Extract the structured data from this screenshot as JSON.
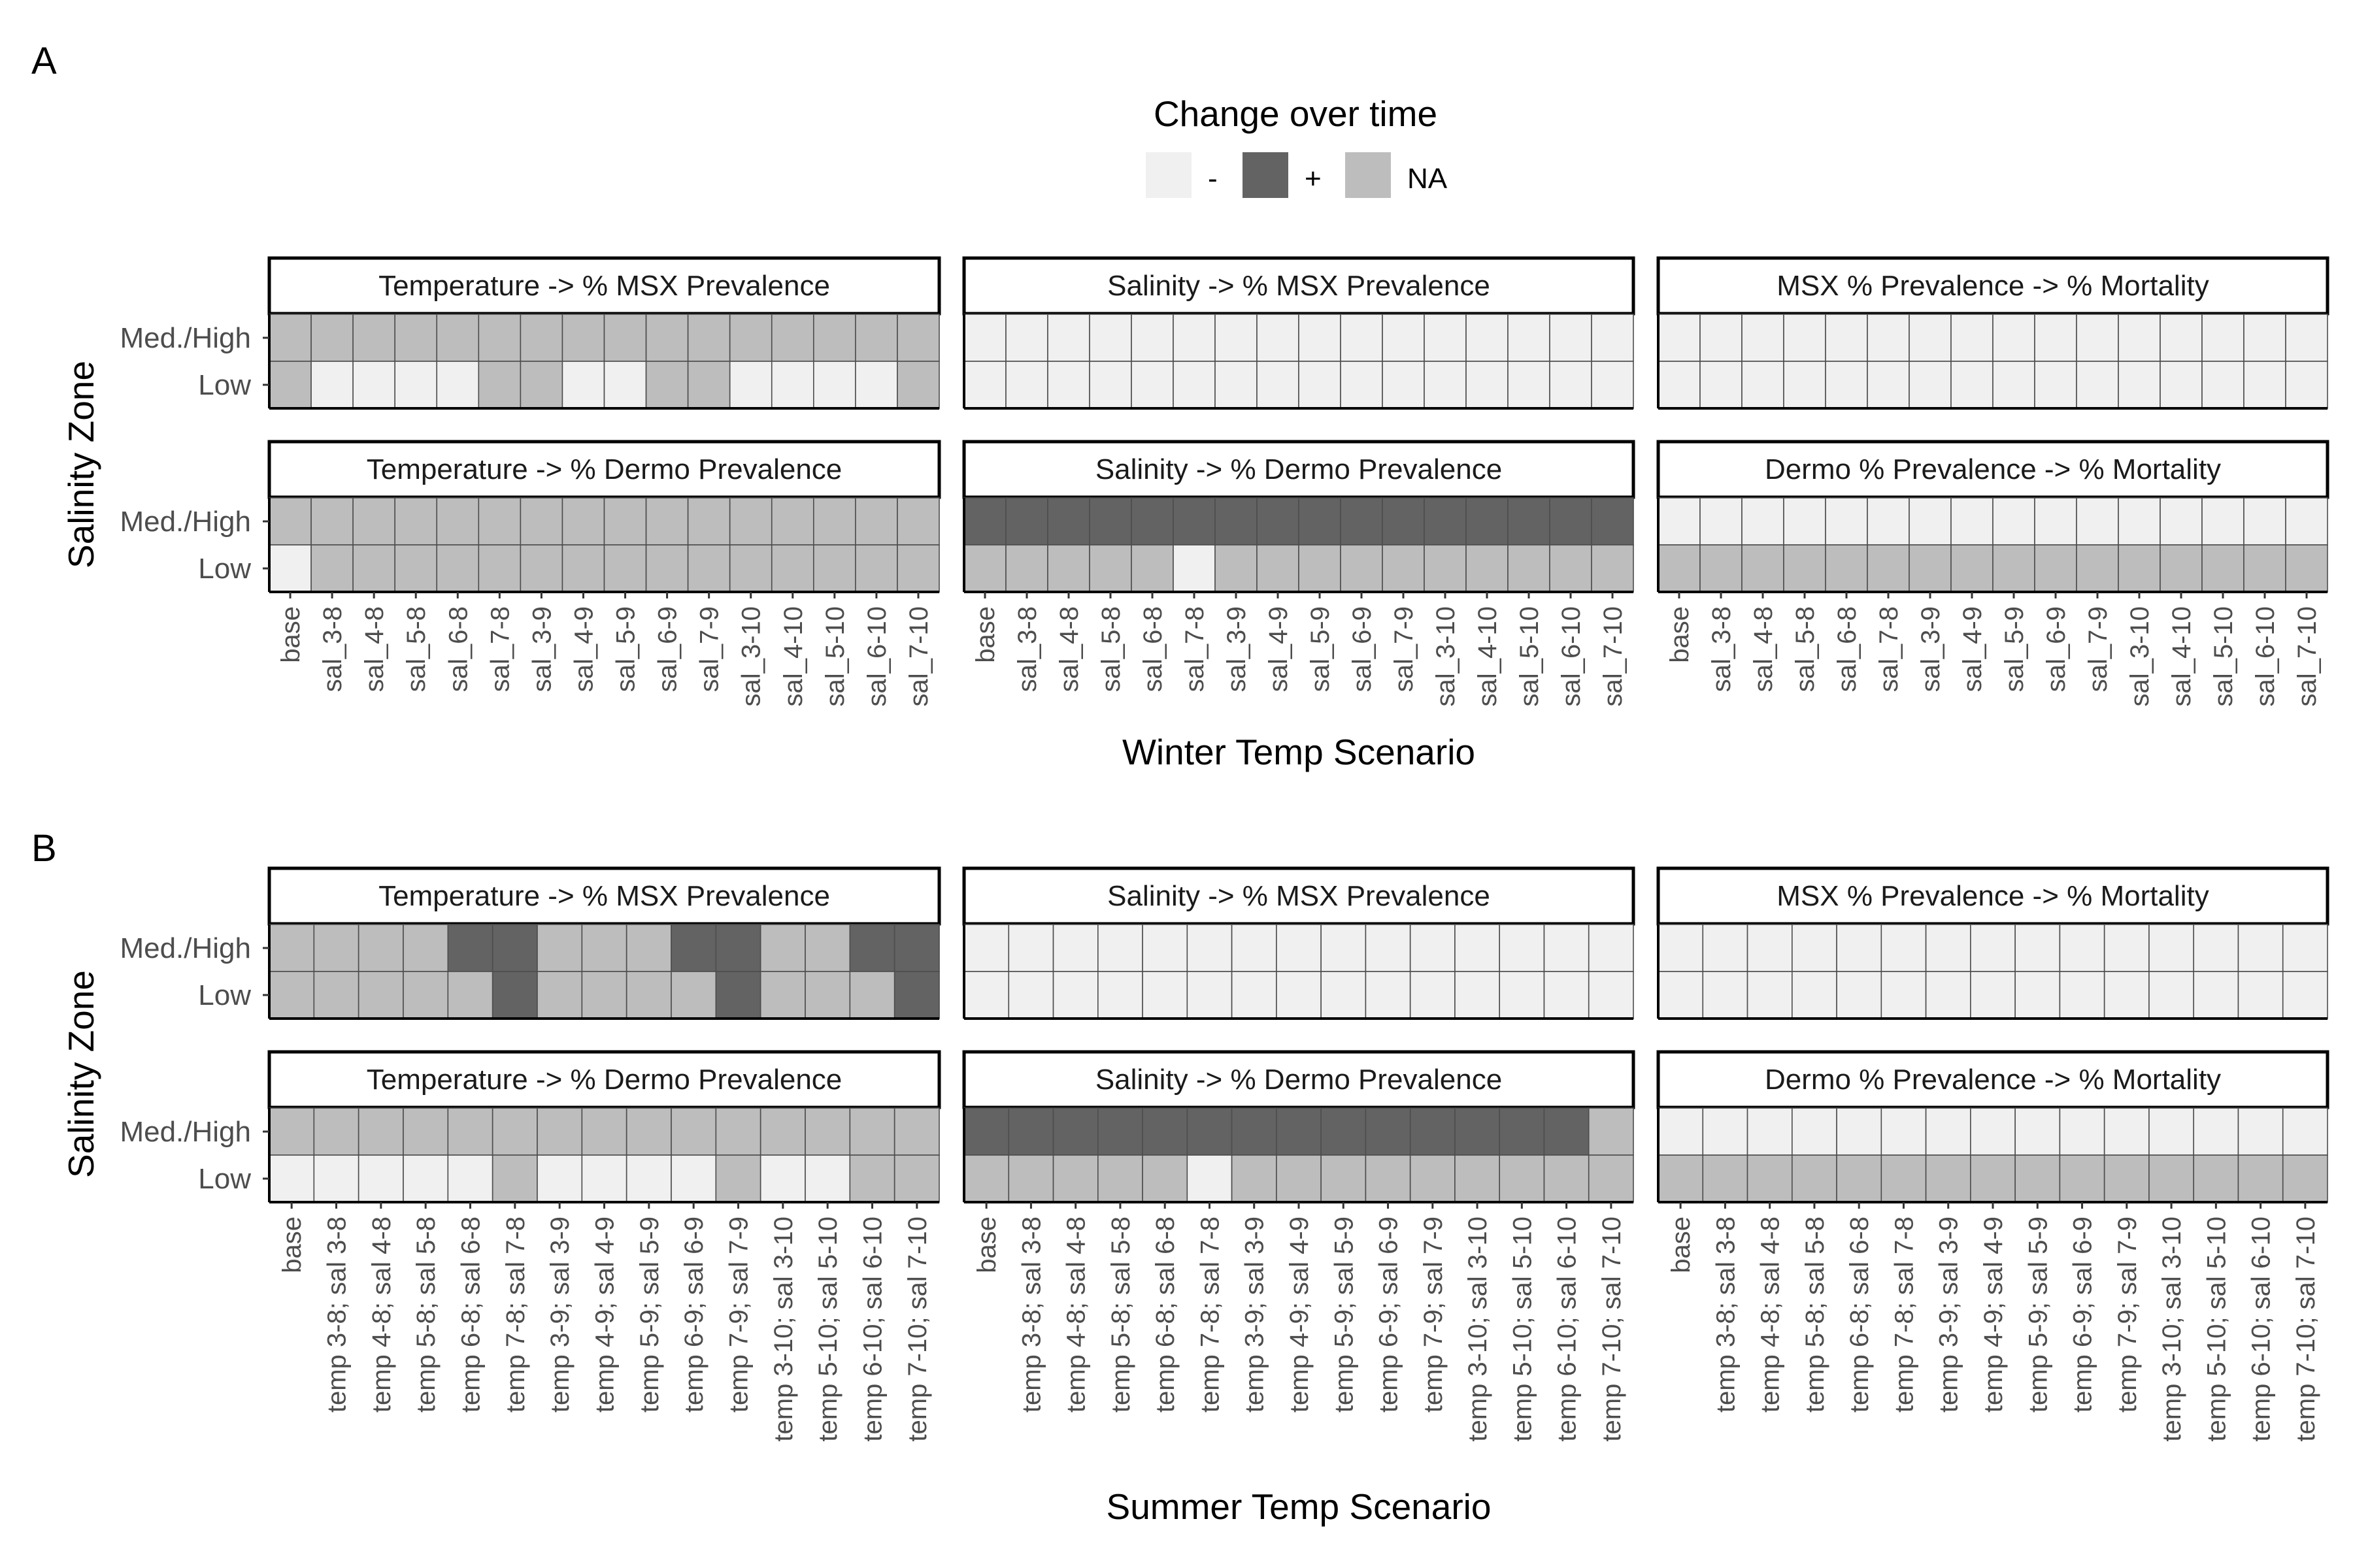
{
  "legend": {
    "title": "Change over time",
    "items": [
      {
        "key": "-",
        "label": "-",
        "color": "#F0F0F0"
      },
      {
        "key": "+",
        "label": "+",
        "color": "#636363"
      },
      {
        "key": "NA",
        "label": "NA",
        "color": "#BDBDBD"
      }
    ]
  },
  "chart_data": [
    {
      "type": "heatmap",
      "panel_label": "A",
      "ylabel": "Salinity Zone",
      "xlabel": "Winter Temp Scenario",
      "rows": [
        "Med./High",
        "Low"
      ],
      "x": [
        "base",
        "sal_3-8",
        "sal_4-8",
        "sal_5-8",
        "sal_6-8",
        "sal_7-8",
        "sal_3-9",
        "sal_4-9",
        "sal_5-9",
        "sal_6-9",
        "sal_7-9",
        "sal_3-10",
        "sal_4-10",
        "sal_5-10",
        "sal_6-10",
        "sal_7-10"
      ],
      "facets": [
        {
          "title": "Temperature -> % MSX Prevalence",
          "values": [
            [
              "NA",
              "NA",
              "NA",
              "NA",
              "NA",
              "NA",
              "NA",
              "NA",
              "NA",
              "NA",
              "NA",
              "NA",
              "NA",
              "NA",
              "NA",
              "NA"
            ],
            [
              "NA",
              "-",
              "-",
              "-",
              "-",
              "NA",
              "NA",
              "-",
              "-",
              "NA",
              "NA",
              "-",
              "-",
              "-",
              "-",
              "NA"
            ]
          ]
        },
        {
          "title": "Salinity -> % MSX Prevalence",
          "values": [
            [
              "-",
              "-",
              "-",
              "-",
              "-",
              "-",
              "-",
              "-",
              "-",
              "-",
              "-",
              "-",
              "-",
              "-",
              "-",
              "-"
            ],
            [
              "-",
              "-",
              "-",
              "-",
              "-",
              "-",
              "-",
              "-",
              "-",
              "-",
              "-",
              "-",
              "-",
              "-",
              "-",
              "-"
            ]
          ]
        },
        {
          "title": "MSX % Prevalence -> % Mortality",
          "values": [
            [
              "-",
              "-",
              "-",
              "-",
              "-",
              "-",
              "-",
              "-",
              "-",
              "-",
              "-",
              "-",
              "-",
              "-",
              "-",
              "-"
            ],
            [
              "-",
              "-",
              "-",
              "-",
              "-",
              "-",
              "-",
              "-",
              "-",
              "-",
              "-",
              "-",
              "-",
              "-",
              "-",
              "-"
            ]
          ]
        },
        {
          "title": "Temperature -> % Dermo Prevalence",
          "values": [
            [
              "NA",
              "NA",
              "NA",
              "NA",
              "NA",
              "NA",
              "NA",
              "NA",
              "NA",
              "NA",
              "NA",
              "NA",
              "NA",
              "NA",
              "NA",
              "NA"
            ],
            [
              "-",
              "NA",
              "NA",
              "NA",
              "NA",
              "NA",
              "NA",
              "NA",
              "NA",
              "NA",
              "NA",
              "NA",
              "NA",
              "NA",
              "NA",
              "NA"
            ]
          ]
        },
        {
          "title": "Salinity -> % Dermo Prevalence",
          "values": [
            [
              "+",
              "+",
              "+",
              "+",
              "+",
              "+",
              "+",
              "+",
              "+",
              "+",
              "+",
              "+",
              "+",
              "+",
              "+",
              "+"
            ],
            [
              "NA",
              "NA",
              "NA",
              "NA",
              "NA",
              "-",
              "NA",
              "NA",
              "NA",
              "NA",
              "NA",
              "NA",
              "NA",
              "NA",
              "NA",
              "NA"
            ]
          ]
        },
        {
          "title": "Dermo % Prevalence -> % Mortality",
          "values": [
            [
              "-",
              "-",
              "-",
              "-",
              "-",
              "-",
              "-",
              "-",
              "-",
              "-",
              "-",
              "-",
              "-",
              "-",
              "-",
              "-"
            ],
            [
              "NA",
              "NA",
              "NA",
              "NA",
              "NA",
              "NA",
              "NA",
              "NA",
              "NA",
              "NA",
              "NA",
              "NA",
              "NA",
              "NA",
              "NA",
              "NA"
            ]
          ]
        }
      ]
    },
    {
      "type": "heatmap",
      "panel_label": "B",
      "ylabel": "Salinity Zone",
      "xlabel": "Summer Temp Scenario",
      "rows": [
        "Med./High",
        "Low"
      ],
      "x": [
        "base",
        "temp 3-8; sal 3-8",
        "temp 4-8; sal 4-8",
        "temp 5-8; sal 5-8",
        "temp 6-8; sal 6-8",
        "temp 7-8; sal 7-8",
        "temp 3-9; sal 3-9",
        "temp 4-9; sal 4-9",
        "temp 5-9; sal 5-9",
        "temp 6-9; sal 6-9",
        "temp 7-9; sal 7-9",
        "temp 3-10; sal 3-10",
        "temp 5-10; sal 5-10",
        "temp 6-10; sal 6-10",
        "temp 7-10; sal 7-10"
      ],
      "facets": [
        {
          "title": "Temperature -> % MSX Prevalence",
          "values": [
            [
              "NA",
              "NA",
              "NA",
              "NA",
              "+",
              "+",
              "NA",
              "NA",
              "NA",
              "+",
              "+",
              "NA",
              "NA",
              "+",
              "+"
            ],
            [
              "NA",
              "NA",
              "NA",
              "NA",
              "NA",
              "+",
              "NA",
              "NA",
              "NA",
              "NA",
              "+",
              "NA",
              "NA",
              "NA",
              "+"
            ]
          ]
        },
        {
          "title": "Salinity -> % MSX Prevalence",
          "values": [
            [
              "-",
              "-",
              "-",
              "-",
              "-",
              "-",
              "-",
              "-",
              "-",
              "-",
              "-",
              "-",
              "-",
              "-",
              "-"
            ],
            [
              "-",
              "-",
              "-",
              "-",
              "-",
              "-",
              "-",
              "-",
              "-",
              "-",
              "-",
              "-",
              "-",
              "-",
              "-"
            ]
          ]
        },
        {
          "title": "MSX % Prevalence -> % Mortality",
          "values": [
            [
              "-",
              "-",
              "-",
              "-",
              "-",
              "-",
              "-",
              "-",
              "-",
              "-",
              "-",
              "-",
              "-",
              "-",
              "-"
            ],
            [
              "-",
              "-",
              "-",
              "-",
              "-",
              "-",
              "-",
              "-",
              "-",
              "-",
              "-",
              "-",
              "-",
              "-",
              "-"
            ]
          ]
        },
        {
          "title": "Temperature -> % Dermo Prevalence",
          "values": [
            [
              "NA",
              "NA",
              "NA",
              "NA",
              "NA",
              "NA",
              "NA",
              "NA",
              "NA",
              "NA",
              "NA",
              "NA",
              "NA",
              "NA",
              "NA"
            ],
            [
              "-",
              "-",
              "-",
              "-",
              "-",
              "NA",
              "-",
              "-",
              "-",
              "-",
              "NA",
              "-",
              "-",
              "NA",
              "NA"
            ]
          ]
        },
        {
          "title": "Salinity -> % Dermo Prevalence",
          "values": [
            [
              "+",
              "+",
              "+",
              "+",
              "+",
              "+",
              "+",
              "+",
              "+",
              "+",
              "+",
              "+",
              "+",
              "+",
              "NA"
            ],
            [
              "NA",
              "NA",
              "NA",
              "NA",
              "NA",
              "-",
              "NA",
              "NA",
              "NA",
              "NA",
              "NA",
              "NA",
              "NA",
              "NA",
              "NA"
            ]
          ]
        },
        {
          "title": "Dermo % Prevalence -> % Mortality",
          "values": [
            [
              "-",
              "-",
              "-",
              "-",
              "-",
              "-",
              "-",
              "-",
              "-",
              "-",
              "-",
              "-",
              "-",
              "-",
              "-"
            ],
            [
              "NA",
              "NA",
              "NA",
              "NA",
              "NA",
              "NA",
              "NA",
              "NA",
              "NA",
              "NA",
              "NA",
              "NA",
              "NA",
              "NA",
              "NA"
            ]
          ]
        }
      ]
    }
  ]
}
